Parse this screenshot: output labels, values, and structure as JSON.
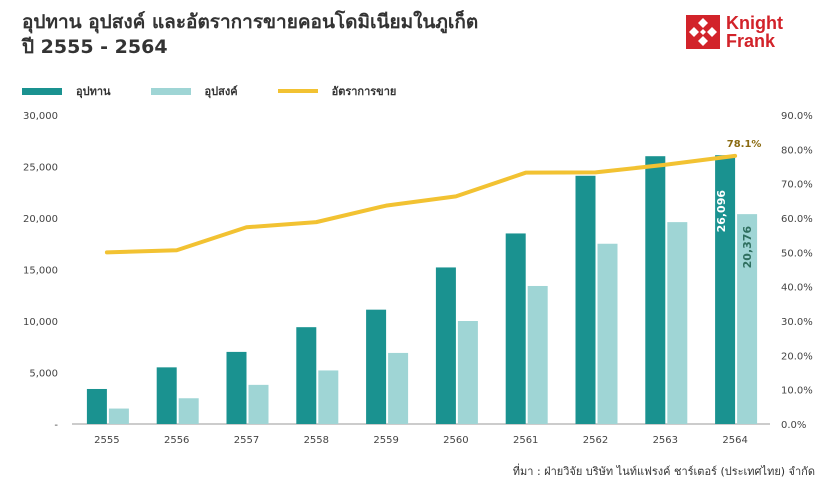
{
  "title_line1": "อุปทาน อุปสงค์ และอัตราการขายคอนโดมิเนียมในภูเก็ต",
  "title_line2": "ปี 2555 - 2564",
  "logo": {
    "line1": "Knight",
    "line2": "Frank",
    "color": "#d2232a"
  },
  "source": "ที่มา : ฝ่ายวิจัย บริษัท ไนท์แฟรงค์ ชาร์เตอร์ (ประเทศไทย) จำกัด",
  "colors": {
    "supply": "#1a9290",
    "demand": "#9fd5d5",
    "rate": "#f2c232"
  },
  "chart_data": {
    "type": "bar",
    "categories": [
      "2555",
      "2556",
      "2557",
      "2558",
      "2559",
      "2560",
      "2561",
      "2562",
      "2563",
      "2564"
    ],
    "series": [
      {
        "name": "อุปทาน",
        "type": "bar",
        "axis": "left",
        "values": [
          3400,
          5500,
          7000,
          9400,
          11100,
          15200,
          18500,
          24100,
          26000,
          26096
        ]
      },
      {
        "name": "อุปสงค์",
        "type": "bar",
        "axis": "left",
        "values": [
          1500,
          2500,
          3800,
          5200,
          6900,
          10000,
          13400,
          17500,
          19600,
          20376
        ]
      },
      {
        "name": "อัตราการขาย",
        "type": "line",
        "axis": "right",
        "values": [
          50.0,
          50.6,
          57.3,
          58.8,
          63.6,
          66.3,
          73.2,
          73.3,
          75.5,
          78.1
        ]
      }
    ],
    "y_left": {
      "min": 0,
      "max": 30000,
      "tick_labels": [
        "-",
        "5,000",
        "10,000",
        "15,000",
        "20,000",
        "25,000",
        "30,000"
      ]
    },
    "y_right": {
      "min": 0,
      "max": 90,
      "tick_labels": [
        "0.0%",
        "10.0%",
        "20.0%",
        "30.0%",
        "40.0%",
        "50.0%",
        "60.0%",
        "70.0%",
        "80.0%",
        "90.0%"
      ]
    },
    "data_labels": {
      "supply_last": "26,096",
      "demand_last": "20,376",
      "rate_last": "78.1%"
    },
    "grid": false,
    "legend_position": "top-left"
  }
}
